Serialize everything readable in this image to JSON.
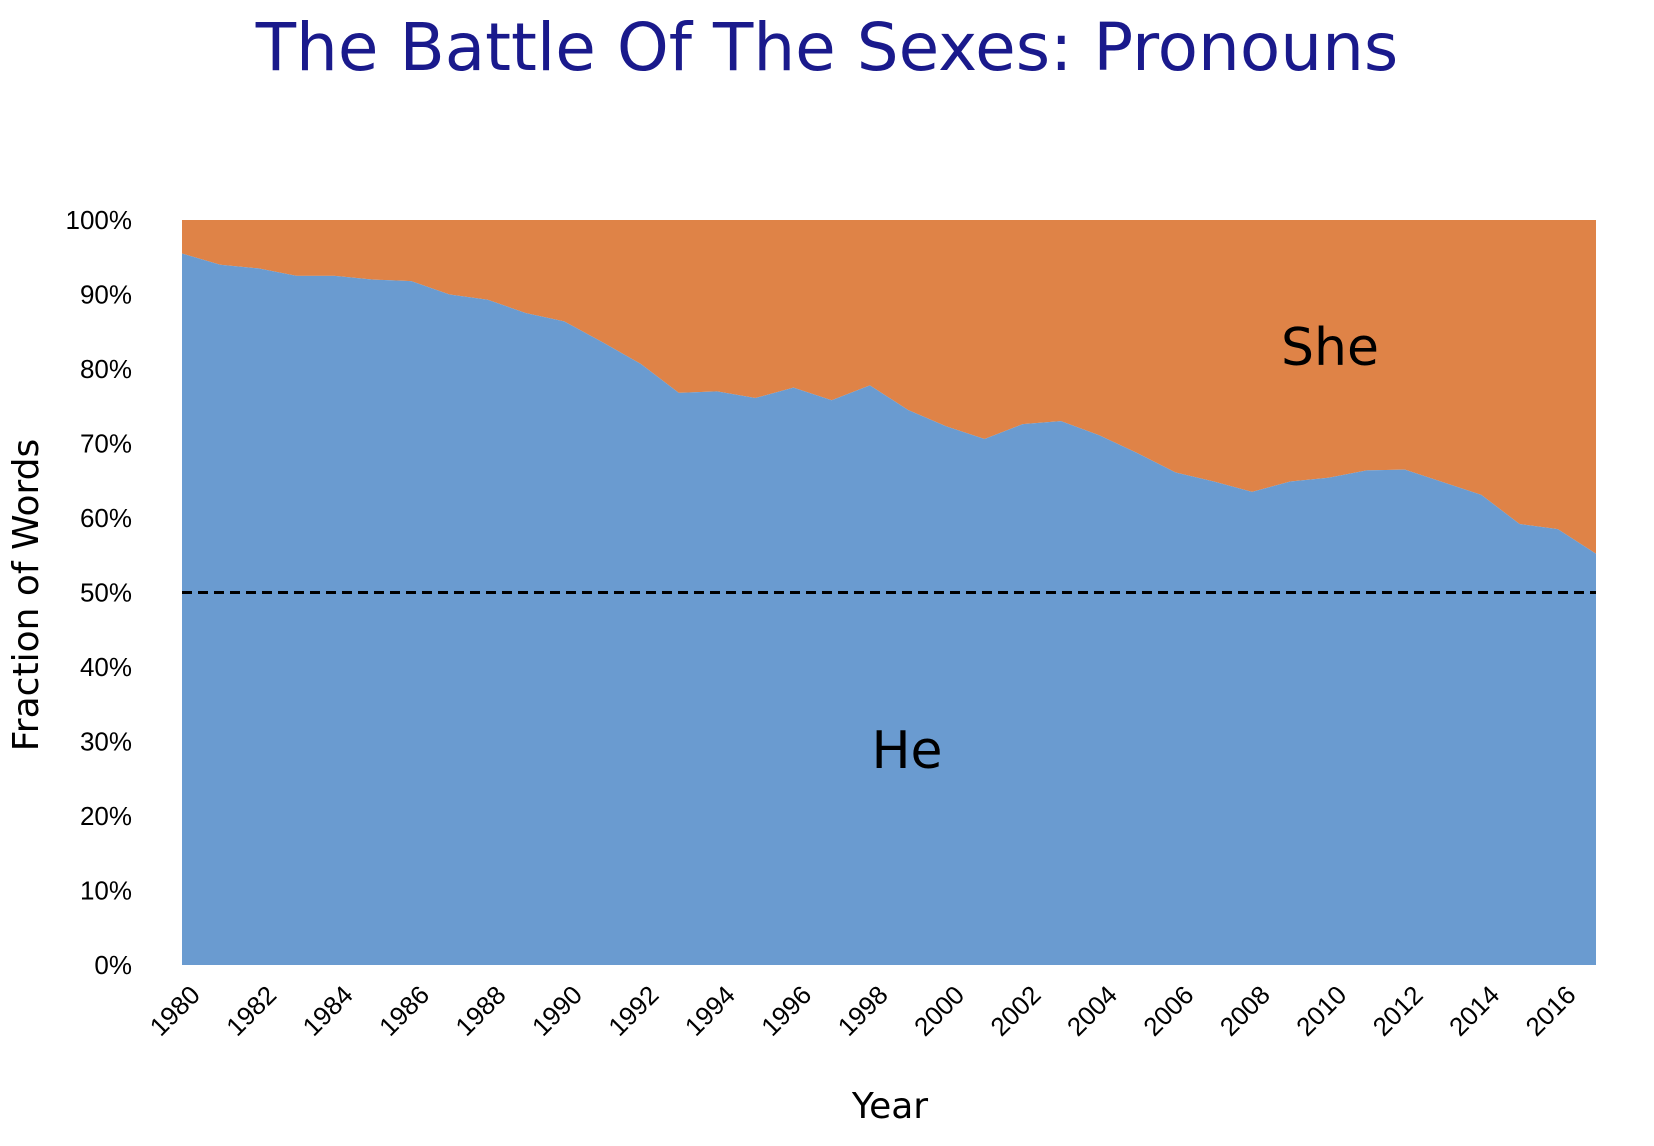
{
  "slide": {
    "title": "The Battle Of The Sexes: Pronouns"
  },
  "colors": {
    "title": "#1a1a8c",
    "he": "#6a9bd0",
    "she": "#df8347",
    "reference_line": "#000000"
  },
  "chart_data": {
    "type": "area",
    "stacked": true,
    "normalized": true,
    "xlabel": "Year",
    "ylabel": "Fraction of Words",
    "ylim": [
      0,
      100
    ],
    "y_unit": "%",
    "yticks": [
      "0%",
      "10%",
      "20%",
      "30%",
      "40%",
      "50%",
      "60%",
      "70%",
      "80%",
      "90%",
      "100%"
    ],
    "xlim": [
      1980,
      2017
    ],
    "xticks": [
      "1980",
      "1982",
      "1984",
      "1986",
      "1988",
      "1990",
      "1992",
      "1994",
      "1996",
      "1998",
      "2000",
      "2002",
      "2004",
      "2006",
      "2008",
      "2010",
      "2012",
      "2014",
      "2016"
    ],
    "x": [
      1980,
      1981,
      1982,
      1983,
      1984,
      1985,
      1986,
      1987,
      1988,
      1989,
      1990,
      1991,
      1992,
      1993,
      1994,
      1995,
      1996,
      1997,
      1998,
      1999,
      2000,
      2001,
      2002,
      2003,
      2004,
      2005,
      2006,
      2007,
      2008,
      2009,
      2010,
      2011,
      2012,
      2013,
      2014,
      2015,
      2016,
      2017
    ],
    "series": [
      {
        "name": "He",
        "values": [
          95.5,
          94.0,
          93.5,
          92.5,
          92.5,
          92.0,
          91.8,
          90.0,
          89.3,
          87.5,
          86.4,
          83.6,
          80.7,
          76.8,
          77.0,
          76.1,
          77.5,
          75.8,
          77.8,
          74.5,
          72.3,
          70.6,
          72.6,
          73.0,
          71.1,
          68.7,
          66.1,
          64.9,
          63.5,
          64.9,
          65.4,
          66.4,
          66.5,
          64.8,
          63.1,
          59.2,
          58.5,
          55.2
        ]
      },
      {
        "name": "She",
        "values": [
          4.5,
          6.0,
          6.5,
          7.5,
          7.5,
          8.0,
          8.2,
          10.0,
          10.7,
          12.5,
          13.6,
          16.4,
          19.3,
          23.2,
          23.0,
          23.9,
          22.5,
          24.2,
          22.2,
          25.5,
          27.7,
          29.4,
          27.4,
          27.0,
          28.9,
          31.3,
          33.9,
          35.1,
          36.5,
          35.1,
          34.6,
          33.6,
          33.5,
          35.2,
          36.9,
          40.8,
          41.5,
          44.8
        ]
      }
    ],
    "reference_line": {
      "y": 50,
      "style": "dashed"
    },
    "annotations": [
      {
        "text": "He",
        "series": "He"
      },
      {
        "text": "She",
        "series": "She"
      }
    ],
    "grid": false,
    "legend": "none"
  }
}
